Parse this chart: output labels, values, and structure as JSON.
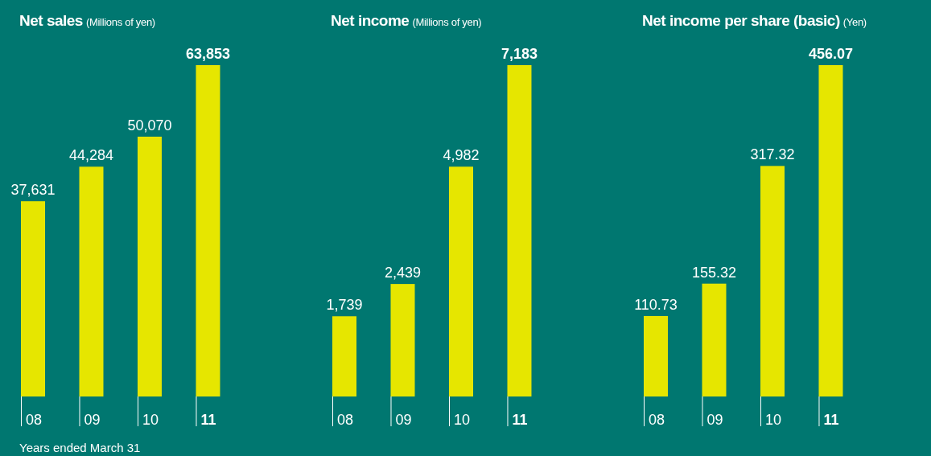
{
  "chart_data": [
    {
      "type": "bar",
      "title": "Net sales",
      "subtitle": "(Millions of yen)",
      "categories": [
        "08",
        "09",
        "10",
        "11"
      ],
      "values": [
        37631,
        44284,
        50070,
        63853
      ],
      "value_labels": [
        "37,631",
        "44,284",
        "50,070",
        "63,853"
      ],
      "color": "#e6e600",
      "annotations": [
        "Years ended March 31"
      ]
    },
    {
      "type": "bar",
      "title": "Net income",
      "subtitle": "(Millions of yen)",
      "categories": [
        "08",
        "09",
        "10",
        "11"
      ],
      "values": [
        1739,
        2439,
        4982,
        7183
      ],
      "value_labels": [
        "1,739",
        "2,439",
        "4,982",
        "7,183"
      ],
      "color": "#e6e600"
    },
    {
      "type": "bar",
      "title": "Net income per share (basic)",
      "subtitle": "(Yen)",
      "categories": [
        "08",
        "09",
        "10",
        "11"
      ],
      "values": [
        110.73,
        155.32,
        317.32,
        456.07
      ],
      "color": "#e6e600",
      "data_labels": true
    }
  ]
}
